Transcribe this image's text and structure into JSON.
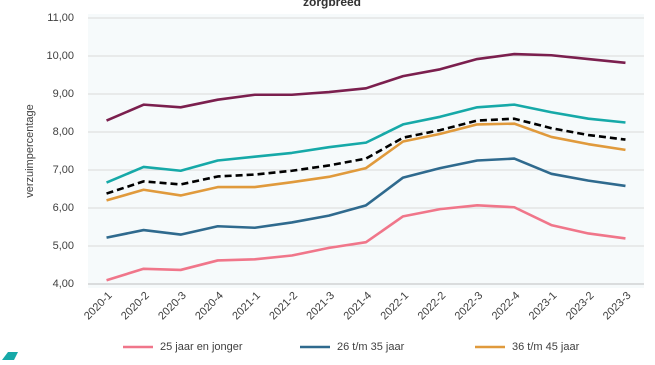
{
  "chart_data": {
    "type": "line",
    "title": "zorgbreed",
    "y_label": "verzuimpercentage",
    "categories": [
      "2020-1",
      "2020-2",
      "2020-3",
      "2020-4",
      "2021-1",
      "2021-2",
      "2021-3",
      "2021-4",
      "2022-1",
      "2022-2",
      "2022-3",
      "2022-4",
      "2023-1",
      "2023-2",
      "2023-3"
    ],
    "series": [
      {
        "name": "25 jaar en jonger",
        "color": "#f0768a",
        "values": [
          4.1,
          4.4,
          4.37,
          4.62,
          4.65,
          4.75,
          4.95,
          5.1,
          5.78,
          5.97,
          6.07,
          6.02,
          5.55,
          5.33,
          5.2
        ]
      },
      {
        "name": "26 t/m 35 jaar",
        "color": "#2f6a8e",
        "values": [
          5.22,
          5.42,
          5.3,
          5.52,
          5.48,
          5.62,
          5.8,
          6.07,
          6.8,
          7.05,
          7.25,
          7.3,
          6.9,
          6.72,
          6.58
        ]
      },
      {
        "name": "36 t/m 45 jaar",
        "color": "#e09a3c",
        "values": [
          6.2,
          6.48,
          6.33,
          6.55,
          6.55,
          6.68,
          6.82,
          7.05,
          7.75,
          7.95,
          8.2,
          8.22,
          7.87,
          7.68,
          7.53
        ]
      },
      {
        "color": "#000000",
        "dashed": true,
        "values": [
          6.38,
          6.7,
          6.62,
          6.83,
          6.88,
          6.98,
          7.12,
          7.3,
          7.85,
          8.05,
          8.3,
          8.35,
          8.1,
          7.92,
          7.8
        ]
      },
      {
        "color": "#16a9a8",
        "values": [
          6.67,
          7.08,
          6.98,
          7.25,
          7.35,
          7.45,
          7.6,
          7.72,
          8.2,
          8.4,
          8.65,
          8.72,
          8.52,
          8.35,
          8.25
        ]
      },
      {
        "color": "#7b1f4e",
        "values": [
          8.3,
          8.72,
          8.65,
          8.85,
          8.98,
          8.98,
          9.05,
          9.15,
          9.47,
          9.65,
          9.92,
          10.05,
          10.02,
          9.92,
          9.82
        ]
      }
    ],
    "ylim": [
      4,
      11
    ],
    "yticks": [
      {
        "value": 4,
        "label": "4,00"
      },
      {
        "value": 5,
        "label": "5,00"
      },
      {
        "value": 6,
        "label": "6,00"
      },
      {
        "value": 7,
        "label": "7,00"
      },
      {
        "value": 8,
        "label": "8,00"
      },
      {
        "value": 9,
        "label": "9,00"
      },
      {
        "value": 10,
        "label": "10,00"
      },
      {
        "value": 11,
        "label": "11,00"
      }
    ],
    "grid": true
  }
}
